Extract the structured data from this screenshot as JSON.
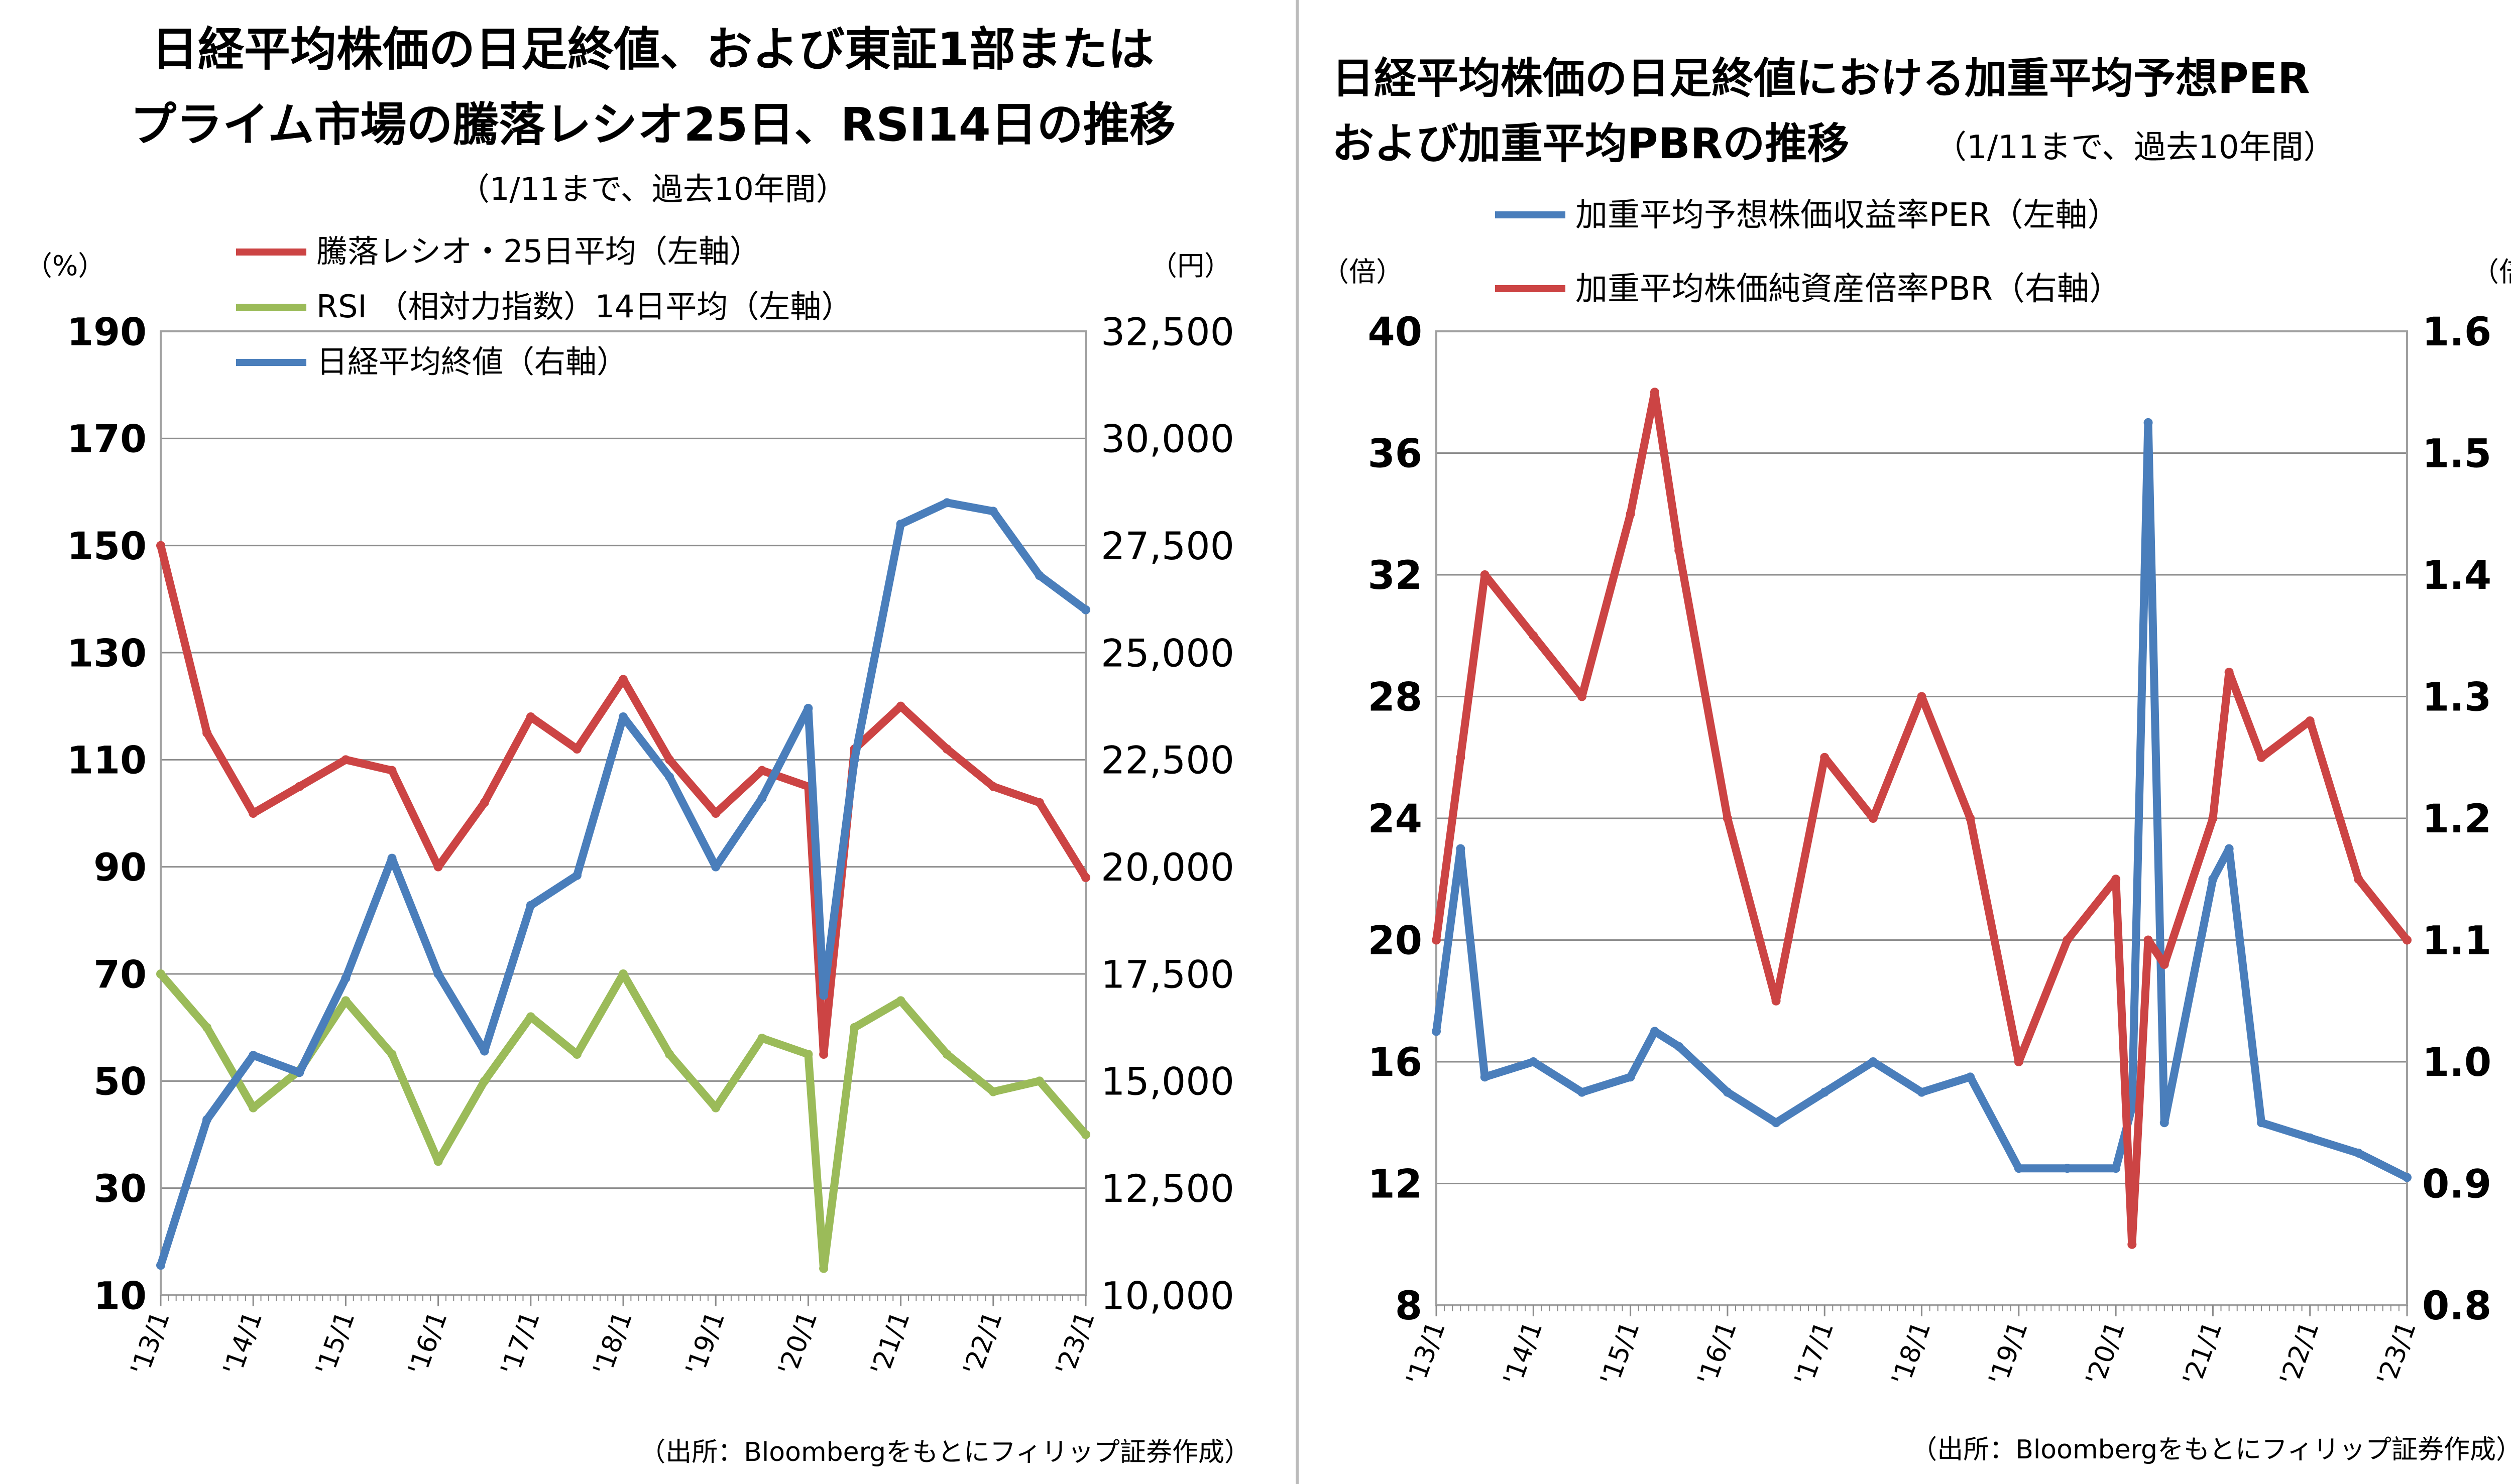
{
  "left": {
    "title_line1": "日経平均株価の日足終値、および東証1部または",
    "title_line2": "プライム市場の騰落レシオ25日、RSI14日の推移",
    "subtitle": "（1/11まで、過去10年間）",
    "left_unit": "（%）",
    "right_unit": "（円）",
    "legend": [
      {
        "label": "騰落レシオ・25日平均（左軸）",
        "color": "#cc4444"
      },
      {
        "label": "RSI （相対力指数）14日平均（左軸）",
        "color": "#9bbb59"
      },
      {
        "label": "日経平均終値（右軸）",
        "color": "#4a7ebb"
      }
    ],
    "left_ticks": [
      "190",
      "170",
      "150",
      "130",
      "110",
      "90",
      "70",
      "50",
      "30",
      "10"
    ],
    "right_ticks": [
      "32,500",
      "30,000",
      "27,500",
      "25,000",
      "22,500",
      "20,000",
      "17,500",
      "15,000",
      "12,500",
      "10,000"
    ],
    "x_ticks": [
      "'13/1",
      "'14/1",
      "'15/1",
      "'16/1",
      "'17/1",
      "'18/1",
      "'19/1",
      "'20/1",
      "'21/1",
      "'22/1",
      "'23/1"
    ],
    "source": "（出所：Bloombergをもとにフィリップ証券作成）"
  },
  "right": {
    "title_line1": "日経平均株価の日足終値における加重平均予想PER",
    "title_line2": "および加重平均PBRの推移",
    "subtitle": "（1/11まで、過去10年間）",
    "left_unit": "（倍）",
    "right_unit": "（倍）",
    "legend": [
      {
        "label": "加重平均予想株価収益率PER（左軸）",
        "color": "#4a7ebb"
      },
      {
        "label": "加重平均株価純資産倍率PBR（右軸）",
        "color": "#cc4444"
      }
    ],
    "left_ticks": [
      "40",
      "36",
      "32",
      "28",
      "24",
      "20",
      "16",
      "12",
      "8"
    ],
    "right_ticks": [
      "1.6",
      "1.5",
      "1.4",
      "1.3",
      "1.2",
      "1.1",
      "1.0",
      "0.9",
      "0.8"
    ],
    "x_ticks": [
      "'13/1",
      "'14/1",
      "'15/1",
      "'16/1",
      "'17/1",
      "'18/1",
      "'19/1",
      "'20/1",
      "'21/1",
      "'22/1",
      "'23/1"
    ],
    "source": "（出所：Bloombergをもとにフィリップ証券作成）"
  },
  "chart_data": [
    {
      "type": "line",
      "title": "日経平均株価の日足終値、および東証1部またはプライム市場の騰落レシオ25日、RSI14日の推移",
      "x": [
        "2013-01",
        "2013-07",
        "2014-01",
        "2014-07",
        "2015-01",
        "2015-07",
        "2016-01",
        "2016-07",
        "2017-01",
        "2017-07",
        "2018-01",
        "2018-07",
        "2019-01",
        "2019-07",
        "2020-01",
        "2020-03",
        "2020-07",
        "2021-01",
        "2021-07",
        "2022-01",
        "2022-07",
        "2023-01"
      ],
      "ylim": [
        10,
        190
      ],
      "y2lim": [
        10000,
        32500
      ],
      "series": [
        {
          "name": "騰落レシオ・25日平均（左軸）",
          "axis": "left",
          "color": "#cc4444",
          "values": [
            150,
            115,
            100,
            105,
            110,
            108,
            90,
            102,
            118,
            112,
            125,
            110,
            100,
            108,
            105,
            55,
            112,
            120,
            112,
            105,
            102,
            88
          ]
        },
        {
          "name": "RSI （相対力指数）14日平均（左軸）",
          "axis": "left",
          "color": "#9bbb59",
          "values": [
            70,
            60,
            45,
            52,
            65,
            55,
            35,
            50,
            62,
            55,
            70,
            55,
            45,
            58,
            55,
            15,
            60,
            65,
            55,
            48,
            50,
            40
          ]
        },
        {
          "name": "日経平均終値（右軸）",
          "axis": "right",
          "color": "#4a7ebb",
          "values": [
            10700,
            14100,
            15600,
            15200,
            17400,
            20200,
            17500,
            15700,
            19100,
            19800,
            23500,
            22100,
            20000,
            21600,
            23700,
            17000,
            22500,
            28000,
            28500,
            28300,
            26800,
            26000
          ]
        }
      ]
    },
    {
      "type": "line",
      "title": "日経平均株価の日足終値における加重平均予想PERおよび加重平均PBRの推移",
      "x": [
        "2013-01",
        "2013-04",
        "2013-07",
        "2014-01",
        "2014-07",
        "2015-01",
        "2015-04",
        "2015-07",
        "2016-01",
        "2016-07",
        "2017-01",
        "2017-07",
        "2018-01",
        "2018-07",
        "2019-01",
        "2019-07",
        "2020-01",
        "2020-03",
        "2020-05",
        "2020-07",
        "2021-01",
        "2021-03",
        "2021-07",
        "2022-01",
        "2022-07",
        "2023-01"
      ],
      "ylim": [
        8,
        40
      ],
      "y2lim": [
        0.8,
        1.6
      ],
      "series": [
        {
          "name": "加重平均予想株価収益率PER（左軸）",
          "axis": "left",
          "color": "#4a7ebb",
          "values": [
            17,
            23,
            15.5,
            16,
            15,
            15.5,
            17,
            16.5,
            15,
            14,
            15,
            16,
            15,
            15.5,
            12.5,
            12.5,
            12.5,
            14.5,
            37,
            14,
            22,
            23,
            14,
            13.5,
            13,
            12.2
          ]
        },
        {
          "name": "加重平均株価純資産倍率PBR（右軸）",
          "axis": "right",
          "color": "#cc4444",
          "values": [
            1.1,
            1.25,
            1.4,
            1.35,
            1.3,
            1.45,
            1.55,
            1.42,
            1.2,
            1.05,
            1.25,
            1.2,
            1.3,
            1.2,
            1.0,
            1.1,
            1.15,
            0.85,
            1.1,
            1.08,
            1.2,
            1.32,
            1.25,
            1.28,
            1.15,
            1.1
          ]
        }
      ]
    }
  ]
}
